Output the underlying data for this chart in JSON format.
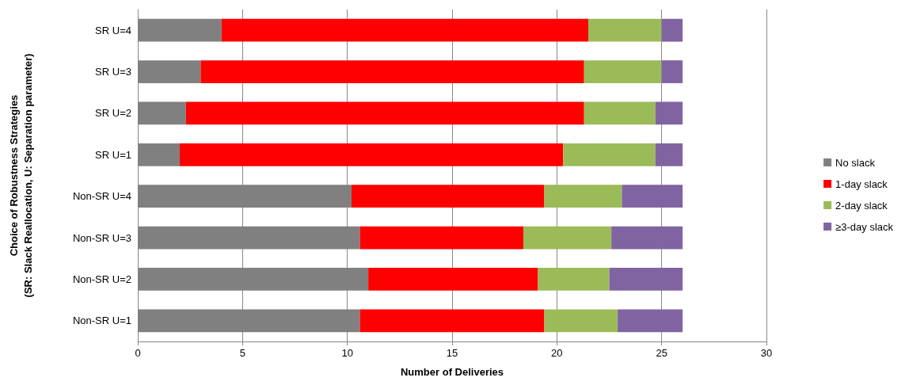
{
  "chart_data": {
    "type": "bar",
    "orientation": "horizontal",
    "stacked": true,
    "xlabel": "Number of Deliveries",
    "ylabel": "Choice of Robustness Strategies\n(SR: Slack Reallocation, U: Separation parameter)",
    "categories": [
      "SR U=4",
      "SR U=3",
      "SR U=2",
      "SR U=1",
      "Non-SR U=4",
      "Non-SR U=3",
      "Non-SR U=2",
      "Non-SR U=1"
    ],
    "series": [
      {
        "name": "No slack",
        "color": "#808080",
        "values": [
          4,
          3,
          2.3,
          2,
          10.2,
          10.6,
          11,
          10.6
        ]
      },
      {
        "name": "1-day slack",
        "color": "#ff0000",
        "values": [
          17.5,
          18.3,
          19,
          18.3,
          9.2,
          7.8,
          8.1,
          8.8
        ]
      },
      {
        "name": "2-day slack",
        "color": "#9bbb59",
        "values": [
          3.5,
          3.7,
          3.4,
          4.4,
          3.7,
          4.2,
          3.4,
          3.5
        ]
      },
      {
        "name": "≥3-day slack",
        "color": "#8064a2",
        "values": [
          1,
          1,
          1.3,
          1.3,
          2.9,
          3.4,
          3.5,
          3.1
        ]
      }
    ],
    "xlim": [
      0,
      30
    ],
    "xticks": [
      0,
      5,
      10,
      15,
      20,
      25,
      30
    ],
    "grid": "x",
    "legend": "right"
  }
}
